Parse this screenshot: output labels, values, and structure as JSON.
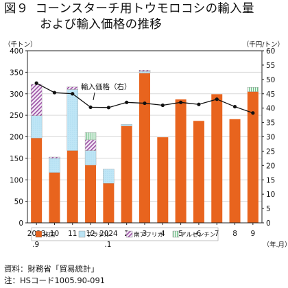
{
  "figure_label": "図９",
  "title_line1": "コーンスターチ用トウモロコシの輸入量",
  "title_line2": "および輸入価格の推移",
  "source_note": "資料：財務省「貿易統計」",
  "code_note": "注：HSコード1005.90-091",
  "colors": {
    "us": "#e8641e",
    "brazil": "#bfe6f6",
    "south_africa": "#9a4ea3",
    "argentina": "#6dbf86",
    "price_line": "#111111",
    "grid": "#d9d9d9"
  },
  "chart_data": {
    "type": "bar",
    "stacked": true,
    "categories": [
      "2023\n.9",
      "10",
      "11",
      "12",
      "2024\n.1",
      "2",
      "3",
      "4",
      "5",
      "6",
      "7",
      "8",
      "9"
    ],
    "x_unit": "（年.月）",
    "y_left_unit": "（千トン）",
    "y_right_unit": "（千円/トン）",
    "ylim_left": [
      0,
      400
    ],
    "yticks_left": [
      0,
      50,
      100,
      150,
      200,
      250,
      300,
      350,
      400
    ],
    "ylim_right": [
      0,
      60
    ],
    "yticks_right": [
      0,
      5,
      10,
      15,
      20,
      25,
      30,
      35,
      40,
      45,
      50,
      55,
      60
    ],
    "grid": true,
    "legend_position": "bottom",
    "series": [
      {
        "name": "米国",
        "key": "us",
        "pattern": "solid",
        "values": [
          197,
          117,
          168,
          134,
          92,
          225,
          348,
          199,
          287,
          237,
          299,
          241,
          305
        ]
      },
      {
        "name": "ブラジル",
        "key": "brazil",
        "pattern": "dots",
        "values": [
          52,
          33,
          142,
          34,
          33,
          4,
          4,
          0,
          0,
          0,
          0,
          0,
          0
        ]
      },
      {
        "name": "南アフリカ",
        "key": "south_africa",
        "pattern": "diagonal",
        "values": [
          73,
          3,
          6,
          25,
          0,
          0,
          3,
          0,
          0,
          0,
          0,
          0,
          0
        ]
      },
      {
        "name": "アルゼンチン",
        "key": "argentina",
        "pattern": "vertical",
        "values": [
          0,
          0,
          0,
          17,
          0,
          0,
          0,
          0,
          0,
          0,
          0,
          0,
          10
        ]
      }
    ],
    "line_series": {
      "name": "輸入価格（右軸）",
      "axis": "right",
      "values": [
        48.7,
        45.4,
        45.0,
        40.3,
        40.2,
        42.0,
        41.7,
        41.0,
        42.0,
        41.3,
        43.1,
        40.5,
        38.3
      ]
    }
  }
}
